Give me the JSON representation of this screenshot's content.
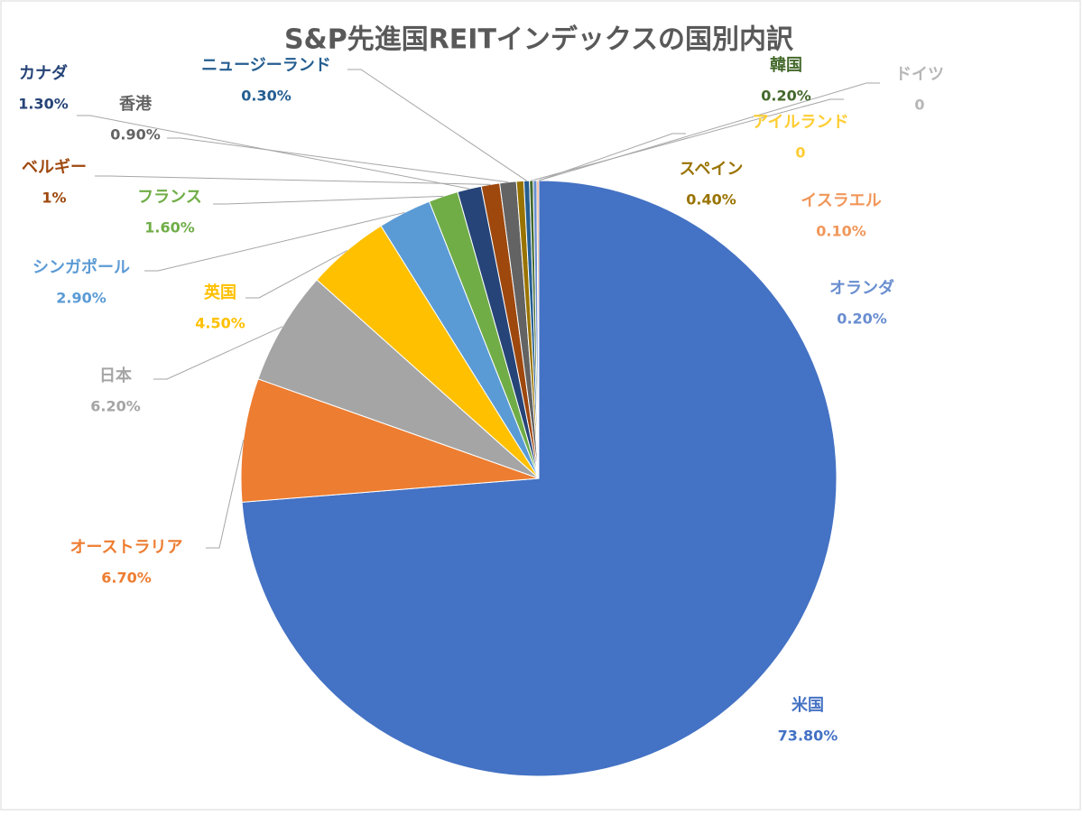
{
  "chart_data": {
    "type": "pie",
    "title": "S&P先進国REITインデックスの国別内訳",
    "categories": [
      "米国",
      "オーストラリア",
      "日本",
      "英国",
      "シンガポール",
      "フランス",
      "カナダ",
      "ベルギー",
      "香港",
      "スペイン",
      "ニュージーランド",
      "韓国",
      "オランダ",
      "イスラエル",
      "ドイツ",
      "アイルランド"
    ],
    "values": [
      73.8,
      6.7,
      6.2,
      4.5,
      2.9,
      1.6,
      1.3,
      1,
      0.9,
      0.4,
      0.3,
      0.2,
      0.2,
      0.1,
      0,
      0
    ],
    "value_labels": [
      "73.80%",
      "6.70%",
      "6.20%",
      "4.50%",
      "2.90%",
      "1.60%",
      "1.30%",
      "1%",
      "0.90%",
      "0.40%",
      "0.30%",
      "0.20%",
      "0.20%",
      "0.10%",
      "0",
      "0"
    ],
    "colors": [
      "#4472c4",
      "#ed7d31",
      "#a5a5a5",
      "#ffc000",
      "#5b9bd5",
      "#70ad47",
      "#264478",
      "#9e480e",
      "#636363",
      "#997300",
      "#255e91",
      "#43682b",
      "#698ed0",
      "#f1975a",
      "#b7b7b7",
      "#ffcd33"
    ]
  }
}
